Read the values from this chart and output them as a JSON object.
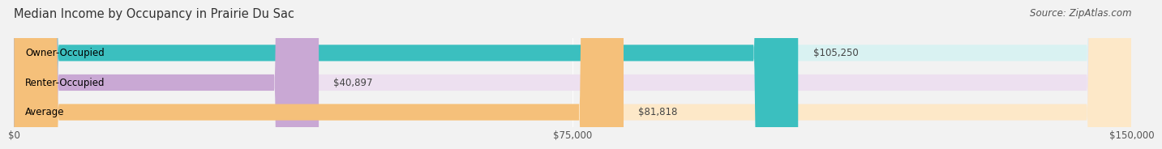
{
  "title": "Median Income by Occupancy in Prairie Du Sac",
  "source": "Source: ZipAtlas.com",
  "categories": [
    "Owner-Occupied",
    "Renter-Occupied",
    "Average"
  ],
  "values": [
    105250,
    40897,
    81818
  ],
  "bar_colors": [
    "#3bbfbf",
    "#c9a8d4",
    "#f5c07a"
  ],
  "value_labels": [
    "$105,250",
    "$40,897",
    "$81,818"
  ],
  "xlim": [
    0,
    150000
  ],
  "xticks": [
    0,
    75000,
    150000
  ],
  "xtick_labels": [
    "$0",
    "$75,000",
    "$150,000"
  ],
  "bar_height": 0.55,
  "title_fontsize": 10.5,
  "label_fontsize": 8.5,
  "value_fontsize": 8.5,
  "source_fontsize": 8.5,
  "background_color": "#f2f2f2",
  "bar_bg_colors": [
    "#d9f2f2",
    "#ede0f0",
    "#fde8c8"
  ]
}
